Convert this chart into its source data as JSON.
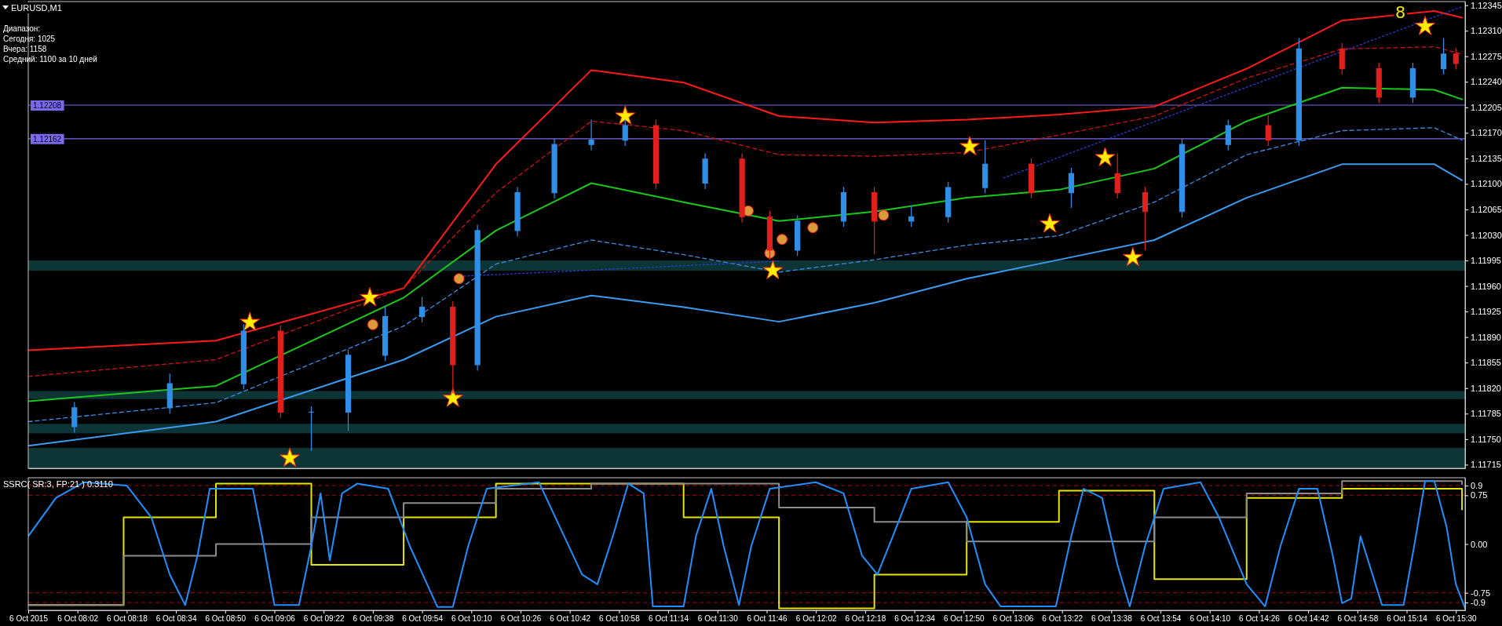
{
  "chart_data": [
    {
      "type": "candlestick",
      "title": "EURUSD,M1",
      "annotations": [
        "Диапазон:",
        "Сегодня:  1025",
        "Вчера:     1158",
        "Средний:  1100 за 10 дней",
        {
          "text": "8",
          "x": "2015-10-06T15:12",
          "y": 1.12334
        }
      ],
      "x": [
        "2015-10-06T08:01",
        "2015-10-06T08:32",
        "2015-10-06T08:56",
        "2015-10-06T09:08",
        "2015-10-06T09:18",
        "2015-10-06T09:30",
        "2015-10-06T09:42",
        "2015-10-06T09:54",
        "2015-10-06T10:04",
        "2015-10-06T10:12",
        "2015-10-06T10:25",
        "2015-10-06T10:37",
        "2015-10-06T10:49",
        "2015-10-06T11:00",
        "2015-10-06T11:10",
        "2015-10-06T11:26",
        "2015-10-06T11:38",
        "2015-10-06T11:47",
        "2015-10-06T11:56",
        "2015-10-06T12:11",
        "2015-10-06T12:21",
        "2015-10-06T12:33",
        "2015-10-06T12:45",
        "2015-10-06T12:57",
        "2015-10-06T13:12",
        "2015-10-06T13:25",
        "2015-10-06T13:40",
        "2015-10-06T13:49",
        "2015-10-06T14:01",
        "2015-10-06T14:16",
        "2015-10-06T14:29",
        "2015-10-06T14:39",
        "2015-10-06T14:53",
        "2015-10-06T15:05",
        "2015-10-06T15:16",
        "2015-10-06T15:26",
        "2015-10-06T15:30"
      ],
      "ohlc": [
        [
          1.11767,
          1.11801,
          1.11759,
          1.11793
        ],
        [
          1.11793,
          1.1184,
          1.11785,
          1.11826
        ],
        [
          1.11826,
          1.11908,
          1.11818,
          1.11898
        ],
        [
          1.11898,
          1.11906,
          1.11779,
          1.11787
        ],
        [
          1.11787,
          1.11795,
          1.11734,
          1.11787
        ],
        [
          1.11787,
          1.11873,
          1.11761,
          1.11865
        ],
        [
          1.11865,
          1.11932,
          1.11857,
          1.11918
        ],
        [
          1.11918,
          1.11945,
          1.1191,
          1.11931
        ],
        [
          1.11931,
          1.11939,
          1.11813,
          1.11852
        ],
        [
          1.11852,
          1.12044,
          1.11844,
          1.12036
        ],
        [
          1.12036,
          1.12096,
          1.12028,
          1.12088
        ],
        [
          1.12088,
          1.12162,
          1.1208,
          1.12154
        ],
        [
          1.12154,
          1.12188,
          1.12146,
          1.1216
        ],
        [
          1.1216,
          1.12188,
          1.12152,
          1.1218
        ],
        [
          1.1218,
          1.12188,
          1.12093,
          1.12101
        ],
        [
          1.12101,
          1.12142,
          1.12093,
          1.12134
        ],
        [
          1.12134,
          1.12142,
          1.12047,
          1.12055
        ],
        [
          1.12055,
          1.12063,
          1.11996,
          1.12009
        ],
        [
          1.12009,
          1.12057,
          1.12001,
          1.12049
        ],
        [
          1.12049,
          1.12096,
          1.12041,
          1.12088
        ],
        [
          1.12088,
          1.12096,
          1.12003,
          1.12049
        ],
        [
          1.12049,
          1.1207,
          1.12041,
          1.12055
        ],
        [
          1.12055,
          1.12103,
          1.12047,
          1.12095
        ],
        [
          1.12095,
          1.1216,
          1.12087,
          1.12127
        ],
        [
          1.12127,
          1.12135,
          1.1208,
          1.12088
        ],
        [
          1.12088,
          1.12122,
          1.12067,
          1.12114
        ],
        [
          1.12114,
          1.12142,
          1.1208,
          1.12088
        ],
        [
          1.12088,
          1.12096,
          1.12009,
          1.12062
        ],
        [
          1.12062,
          1.12162,
          1.12054,
          1.12154
        ],
        [
          1.12154,
          1.12188,
          1.12146,
          1.1218
        ],
        [
          1.1218,
          1.12194,
          1.12152,
          1.1216
        ],
        [
          1.1216,
          1.123,
          1.12152,
          1.12285
        ],
        [
          1.12285,
          1.12293,
          1.1225,
          1.12258
        ],
        [
          1.12258,
          1.12266,
          1.12211,
          1.12219
        ],
        [
          1.12219,
          1.12266,
          1.12211,
          1.12258
        ],
        [
          1.12258,
          1.123,
          1.1225,
          1.12278
        ],
        [
          1.12278,
          1.12286,
          1.12257,
          1.12265
        ]
      ],
      "colors": [
        "#2f8fe8",
        "#2f8fe8",
        "#2f8fe8",
        "#e0201c",
        "#2f8fe8",
        "#2f8fe8",
        "#2f8fe8",
        "#2f8fe8",
        "#e0201c",
        "#2f8fe8",
        "#2f8fe8",
        "#2f8fe8",
        "#2f8fe8",
        "#2f8fe8",
        "#e0201c",
        "#2f8fe8",
        "#e0201c",
        "#e0201c",
        "#2f8fe8",
        "#2f8fe8",
        "#e0201c",
        "#2f8fe8",
        "#2f8fe8",
        "#2f8fe8",
        "#e0201c",
        "#2f8fe8",
        "#e0201c",
        "#e0201c",
        "#2f8fe8",
        "#2f8fe8",
        "#e0201c",
        "#2f8fe8",
        "#e0201c",
        "#e0201c",
        "#2f8fe8",
        "#2f8fe8",
        "#e0201c"
      ],
      "series": [
        {
          "type": "line",
          "color": "#ff1a1a",
          "line_style": "solid",
          "x": [
            "2015-10-06T07:46",
            "2015-10-06T08:47",
            "2015-10-06T09:48",
            "2015-10-06T10:18",
            "2015-10-06T10:49",
            "2015-10-06T11:19",
            "2015-10-06T11:50",
            "2015-10-06T12:21",
            "2015-10-06T12:51",
            "2015-10-06T13:21",
            "2015-10-06T13:52",
            "2015-10-06T14:22",
            "2015-10-06T14:53",
            "2015-10-06T15:23",
            "2015-10-06T15:32"
          ],
          "values": [
            1.11872,
            1.11885,
            1.11957,
            1.12127,
            1.12256,
            1.12239,
            1.12193,
            1.12184,
            1.12188,
            1.12195,
            1.12206,
            1.12258,
            1.12324,
            1.12337,
            1.12328
          ]
        },
        {
          "type": "line",
          "color": "#d01010",
          "line_style": "dashed",
          "x": [
            "2015-10-06T07:46",
            "2015-10-06T08:47",
            "2015-10-06T09:48",
            "2015-10-06T10:18",
            "2015-10-06T10:49",
            "2015-10-06T11:19",
            "2015-10-06T11:50",
            "2015-10-06T12:21",
            "2015-10-06T12:51",
            "2015-10-06T13:21",
            "2015-10-06T13:52",
            "2015-10-06T14:22",
            "2015-10-06T14:53",
            "2015-10-06T15:23",
            "2015-10-06T15:32"
          ],
          "values": [
            1.11836,
            1.11859,
            1.11957,
            1.12088,
            1.12186,
            1.12173,
            1.1214,
            1.12138,
            1.12143,
            1.12167,
            1.12193,
            1.12245,
            1.12285,
            1.12288,
            1.12278
          ]
        },
        {
          "type": "line",
          "color": "#19c819",
          "line_style": "solid",
          "x": [
            "2015-10-06T07:46",
            "2015-10-06T08:47",
            "2015-10-06T09:48",
            "2015-10-06T10:18",
            "2015-10-06T10:49",
            "2015-10-06T11:19",
            "2015-10-06T11:50",
            "2015-10-06T12:21",
            "2015-10-06T12:51",
            "2015-10-06T13:21",
            "2015-10-06T13:52",
            "2015-10-06T14:22",
            "2015-10-06T14:53",
            "2015-10-06T15:23",
            "2015-10-06T15:32"
          ],
          "values": [
            1.11802,
            1.11823,
            1.11944,
            1.12036,
            1.12101,
            1.12075,
            1.12049,
            1.12062,
            1.12081,
            1.12092,
            1.12121,
            1.12186,
            1.12232,
            1.12229,
            1.12216
          ]
        },
        {
          "type": "line",
          "color": "#3a8fe8",
          "line_style": "dashed",
          "x": [
            "2015-10-06T07:46",
            "2015-10-06T08:47",
            "2015-10-06T09:48",
            "2015-10-06T10:18",
            "2015-10-06T10:49",
            "2015-10-06T11:19",
            "2015-10-06T11:50",
            "2015-10-06T12:21",
            "2015-10-06T12:51",
            "2015-10-06T13:21",
            "2015-10-06T13:52",
            "2015-10-06T14:22",
            "2015-10-06T14:53",
            "2015-10-06T15:23",
            "2015-10-06T15:32"
          ],
          "values": [
            1.11774,
            1.118,
            1.11905,
            1.1199,
            1.12023,
            1.12003,
            1.11979,
            1.11996,
            1.12016,
            1.12029,
            1.12075,
            1.1214,
            1.12173,
            1.12177,
            1.1216
          ]
        },
        {
          "type": "line",
          "color": "#3a9bf0",
          "line_style": "solid",
          "x": [
            "2015-10-06T07:46",
            "2015-10-06T08:47",
            "2015-10-06T09:48",
            "2015-10-06T10:18",
            "2015-10-06T10:49",
            "2015-10-06T11:19",
            "2015-10-06T11:50",
            "2015-10-06T12:21",
            "2015-10-06T12:51",
            "2015-10-06T13:21",
            "2015-10-06T13:52",
            "2015-10-06T14:22",
            "2015-10-06T14:53",
            "2015-10-06T15:23",
            "2015-10-06T15:32"
          ],
          "values": [
            1.11741,
            1.11774,
            1.11859,
            1.11918,
            1.11947,
            1.11931,
            1.11911,
            1.11937,
            1.1197,
            1.11996,
            1.12023,
            1.12081,
            1.12127,
            1.12127,
            1.12105
          ]
        },
        {
          "type": "line",
          "color": "#2a3cd0",
          "line_style": "dotted",
          "x": [
            "2015-10-06T10:05",
            "2015-10-06T11:50",
            "2015-10-06T12:30",
            "2015-10-06T13:03",
            "2015-10-06T15:32"
          ],
          "values": [
            1.11973,
            1.11994,
            null,
            1.12108,
            1.12343
          ]
        },
        {
          "type": "scatter",
          "color": "#d89a3a",
          "marker": "circle",
          "x": [
            "2015-10-06T09:38",
            "2015-10-06T10:06",
            "2015-10-06T11:40",
            "2015-10-06T11:47",
            "2015-10-06T11:51",
            "2015-10-06T12:01",
            "2015-10-06T12:24"
          ],
          "values": [
            1.11907,
            1.1197,
            1.12063,
            1.12005,
            1.12024,
            1.1204,
            1.12057
          ]
        },
        {
          "type": "scatter",
          "color": "#ffee00",
          "marker": "star",
          "x": [
            "2015-10-06T08:58",
            "2015-10-06T09:11",
            "2015-10-06T09:37",
            "2015-10-06T10:04",
            "2015-10-06T11:00",
            "2015-10-06T11:48",
            "2015-10-06T12:52",
            "2015-10-06T13:18",
            "2015-10-06T13:36",
            "2015-10-06T13:45",
            "2015-10-06T15:20"
          ],
          "values": [
            1.1191,
            1.11724,
            1.11944,
            1.11806,
            1.12193,
            1.11981,
            1.12151,
            1.12045,
            1.12136,
            1.11999,
            1.12316
          ]
        }
      ],
      "ref_lines": [
        {
          "axis": "y",
          "value": 1.12208,
          "label": "1.12208",
          "color": "#7b68ee"
        },
        {
          "axis": "y",
          "value": 1.12162,
          "label": "1.12162",
          "color": "#7b68ee"
        }
      ],
      "bands": [
        {
          "axis": "y",
          "from": 1.11981,
          "to": 1.11995,
          "color": "#0e3535"
        },
        {
          "axis": "y",
          "from": 1.11805,
          "to": 1.11816,
          "color": "#0e3535"
        },
        {
          "axis": "y",
          "from": 1.11758,
          "to": 1.11771,
          "color": "#0e3535"
        },
        {
          "axis": "y",
          "from": 1.1171,
          "to": 1.11738,
          "color": "#0e3535"
        }
      ],
      "xlim": [
        "2015-10-06T07:46",
        "2015-10-06T15:33"
      ],
      "ylim": [
        1.1171,
        1.1235
      ],
      "yticks": [
        {
          "value": 1.11715,
          "label": "1.11715"
        },
        {
          "value": 1.1175,
          "label": "1.11750"
        },
        {
          "value": 1.11785,
          "label": "1.11785"
        },
        {
          "value": 1.1182,
          "label": "1.11820"
        },
        {
          "value": 1.11855,
          "label": "1.11855"
        },
        {
          "value": 1.1189,
          "label": "1.11890"
        },
        {
          "value": 1.11925,
          "label": "1.11925"
        },
        {
          "value": 1.1196,
          "label": "1.11960"
        },
        {
          "value": 1.11995,
          "label": "1.11995"
        },
        {
          "value": 1.1203,
          "label": "1.12030"
        },
        {
          "value": 1.12065,
          "label": "1.12065"
        },
        {
          "value": 1.121,
          "label": "1.12100"
        },
        {
          "value": 1.12135,
          "label": "1.12135"
        },
        {
          "value": 1.1217,
          "label": "1.12170"
        },
        {
          "value": 1.12205,
          "label": "1.12205"
        },
        {
          "value": 1.1224,
          "label": "1.12240"
        },
        {
          "value": 1.12275,
          "label": "1.12275"
        },
        {
          "value": 1.1231,
          "label": "1.12310"
        },
        {
          "value": 1.12345,
          "label": "1.12345"
        }
      ],
      "tick_labels": "y"
    },
    {
      "type": "line",
      "title": "SSRC( SR:3, FP:21 ) 0.3110",
      "series": [
        {
          "type": "step",
          "color": "#e6e600",
          "line_style": "solid",
          "x": [
            "2015-10-06T07:46",
            "2015-10-06T08:17",
            "2015-10-06T08:47",
            "2015-10-06T09:18",
            "2015-10-06T09:48",
            "2015-10-06T10:18",
            "2015-10-06T10:49",
            "2015-10-06T11:19",
            "2015-10-06T11:50",
            "2015-10-06T12:21",
            "2015-10-06T12:51",
            "2015-10-06T13:21",
            "2015-10-06T13:52",
            "2015-10-06T14:22",
            "2015-10-06T14:53",
            "2015-10-06T15:23",
            "2015-10-06T15:32"
          ],
          "values": [
            -0.94,
            0.41,
            0.93,
            -0.32,
            0.41,
            0.93,
            0.93,
            0.41,
            -0.99,
            -0.47,
            0.34,
            0.82,
            -0.54,
            0.71,
            0.85,
            0.85,
            0.53
          ]
        },
        {
          "type": "step",
          "color": "#8c8c8c",
          "line_style": "solid",
          "x": [
            "2015-10-06T07:46",
            "2015-10-06T08:17",
            "2015-10-06T08:47",
            "2015-10-06T09:18",
            "2015-10-06T09:48",
            "2015-10-06T10:18",
            "2015-10-06T10:49",
            "2015-10-06T11:19",
            "2015-10-06T11:50",
            "2015-10-06T12:21",
            "2015-10-06T12:51",
            "2015-10-06T13:21",
            "2015-10-06T13:52",
            "2015-10-06T14:22",
            "2015-10-06T14:53",
            "2015-10-06T15:23",
            "2015-10-06T15:32"
          ],
          "values": [
            -0.94,
            -0.18,
            0.0,
            0.41,
            0.63,
            0.85,
            0.93,
            0.93,
            0.56,
            0.34,
            0.04,
            0.04,
            0.41,
            0.78,
            0.97,
            0.97,
            0.92
          ]
        },
        {
          "type": "line",
          "color": "#1e90ff",
          "line_style": "solid",
          "x": [
            "2015-10-06T07:46",
            "2015-10-06T07:55",
            "2015-10-06T08:04",
            "2015-10-06T08:18",
            "2015-10-06T08:26",
            "2015-10-06T08:32",
            "2015-10-06T08:37",
            "2015-10-06T08:41",
            "2015-10-06T08:45",
            "2015-10-06T08:59",
            "2015-10-06T09:02",
            "2015-10-06T09:06",
            "2015-10-06T09:14",
            "2015-10-06T09:18",
            "2015-10-06T09:21",
            "2015-10-06T09:24",
            "2015-10-06T09:28",
            "2015-10-06T09:33",
            "2015-10-06T09:43",
            "2015-10-06T09:50",
            "2015-10-06T09:59",
            "2015-10-06T10:04",
            "2015-10-06T10:09",
            "2015-10-06T10:15",
            "2015-10-06T10:32",
            "2015-10-06T10:38",
            "2015-10-06T10:46",
            "2015-10-06T10:51",
            "2015-10-06T10:56",
            "2015-10-06T11:01",
            "2015-10-06T11:06",
            "2015-10-06T11:09",
            "2015-10-06T11:19",
            "2015-10-06T11:23",
            "2015-10-06T11:28",
            "2015-10-06T11:32",
            "2015-10-06T11:37",
            "2015-10-06T11:41",
            "2015-10-06T11:47",
            "2015-10-06T12:02",
            "2015-10-06T12:11",
            "2015-10-06T12:17",
            "2015-10-06T12:22",
            "2015-10-06T12:27",
            "2015-10-06T12:33",
            "2015-10-06T12:45",
            "2015-10-06T12:51",
            "2015-10-06T12:57",
            "2015-10-06T13:02",
            "2015-10-06T13:20",
            "2015-10-06T13:25",
            "2015-10-06T13:29",
            "2015-10-06T13:35",
            "2015-10-06T13:40",
            "2015-10-06T13:44",
            "2015-10-06T13:49",
            "2015-10-06T13:55",
            "2015-10-06T14:07",
            "2015-10-06T14:13",
            "2015-10-06T14:22",
            "2015-10-06T14:28",
            "2015-10-06T14:33",
            "2015-10-06T14:39",
            "2015-10-06T14:45",
            "2015-10-06T14:50",
            "2015-10-06T14:53",
            "2015-10-06T14:56",
            "2015-10-06T14:59",
            "2015-10-06T15:06",
            "2015-10-06T15:13",
            "2015-10-06T15:17",
            "2015-10-06T15:20",
            "2015-10-06T15:23",
            "2015-10-06T15:27",
            "2015-10-06T15:30",
            "2015-10-06T15:33"
          ],
          "values": [
            0.12,
            0.71,
            0.95,
            0.9,
            0.41,
            -0.47,
            -0.94,
            -0.18,
            0.85,
            0.85,
            0.12,
            -0.94,
            -0.94,
            -0.03,
            0.78,
            -0.25,
            0.78,
            0.93,
            0.85,
            -0.03,
            -0.97,
            -0.97,
            -0.03,
            0.85,
            0.95,
            0.34,
            -0.47,
            -0.62,
            0.12,
            0.93,
            0.78,
            -0.96,
            -0.96,
            0.12,
            0.85,
            -0.03,
            -0.94,
            -0.03,
            0.85,
            0.95,
            0.78,
            -0.18,
            -0.47,
            0.12,
            0.85,
            0.95,
            0.41,
            -0.62,
            -0.96,
            -0.96,
            0.12,
            0.85,
            0.71,
            -0.32,
            -0.96,
            -0.03,
            0.85,
            0.95,
            0.41,
            -0.62,
            -0.96,
            -0.03,
            0.85,
            0.85,
            -0.18,
            -0.91,
            -0.84,
            0.12,
            -0.94,
            -0.94,
            0.12,
            0.97,
            0.97,
            0.26,
            -0.62,
            -0.99
          ]
        }
      ],
      "ref_lines": [
        {
          "axis": "y",
          "value": 0.9,
          "color": "#8b0000",
          "line_style": "dashed"
        },
        {
          "axis": "y",
          "value": 0.75,
          "color": "#8b0000",
          "line_style": "dashed"
        },
        {
          "axis": "y",
          "value": -0.75,
          "color": "#8b0000",
          "line_style": "dashed"
        },
        {
          "axis": "y",
          "value": -0.9,
          "color": "#8b0000",
          "line_style": "dashed"
        }
      ],
      "xlim": [
        "2015-10-06T07:46",
        "2015-10-06T15:33"
      ],
      "xticks": [
        {
          "value": "2015-10-06T07:46",
          "label": "6 Oct 2015"
        },
        {
          "value": "2015-10-06T08:02",
          "label": "6 Oct 08:02"
        },
        {
          "value": "2015-10-06T08:18",
          "label": "6 Oct 08:18"
        },
        {
          "value": "2015-10-06T08:34",
          "label": "6 Oct 08:34"
        },
        {
          "value": "2015-10-06T08:50",
          "label": "6 Oct 08:50"
        },
        {
          "value": "2015-10-06T09:06",
          "label": "6 Oct 09:06"
        },
        {
          "value": "2015-10-06T09:22",
          "label": "6 Oct 09:22"
        },
        {
          "value": "2015-10-06T09:38",
          "label": "6 Oct 09:38"
        },
        {
          "value": "2015-10-06T09:54",
          "label": "6 Oct 09:54"
        },
        {
          "value": "2015-10-06T10:10",
          "label": "6 Oct 10:10"
        },
        {
          "value": "2015-10-06T10:26",
          "label": "6 Oct 10:26"
        },
        {
          "value": "2015-10-06T10:42",
          "label": "6 Oct 10:42"
        },
        {
          "value": "2015-10-06T10:58",
          "label": "6 Oct 10:58"
        },
        {
          "value": "2015-10-06T11:14",
          "label": "6 Oct 11:14"
        },
        {
          "value": "2015-10-06T11:30",
          "label": "6 Oct 11:30"
        },
        {
          "value": "2015-10-06T11:46",
          "label": "6 Oct 11:46"
        },
        {
          "value": "2015-10-06T12:02",
          "label": "6 Oct 12:02"
        },
        {
          "value": "2015-10-06T12:18",
          "label": "6 Oct 12:18"
        },
        {
          "value": "2015-10-06T12:34",
          "label": "6 Oct 12:34"
        },
        {
          "value": "2015-10-06T12:50",
          "label": "6 Oct 12:50"
        },
        {
          "value": "2015-10-06T13:06",
          "label": "6 Oct 13:06"
        },
        {
          "value": "2015-10-06T13:22",
          "label": "6 Oct 13:22"
        },
        {
          "value": "2015-10-06T13:38",
          "label": "6 Oct 13:38"
        },
        {
          "value": "2015-10-06T13:54",
          "label": "6 Oct 13:54"
        },
        {
          "value": "2015-10-06T14:10",
          "label": "6 Oct 14:10"
        },
        {
          "value": "2015-10-06T14:26",
          "label": "6 Oct 14:26"
        },
        {
          "value": "2015-10-06T14:42",
          "label": "6 Oct 14:42"
        },
        {
          "value": "2015-10-06T14:58",
          "label": "6 Oct 14:58"
        },
        {
          "value": "2015-10-06T15:14",
          "label": "6 Oct 15:14"
        },
        {
          "value": "2015-10-06T15:30",
          "label": "6 Oct 15:30"
        }
      ],
      "ylim": [
        -1.02,
        1.02
      ],
      "yticks": [
        0.9,
        0.75,
        {
          "value": 0,
          "label": "0.00"
        },
        -0.75,
        -0.9
      ]
    }
  ]
}
